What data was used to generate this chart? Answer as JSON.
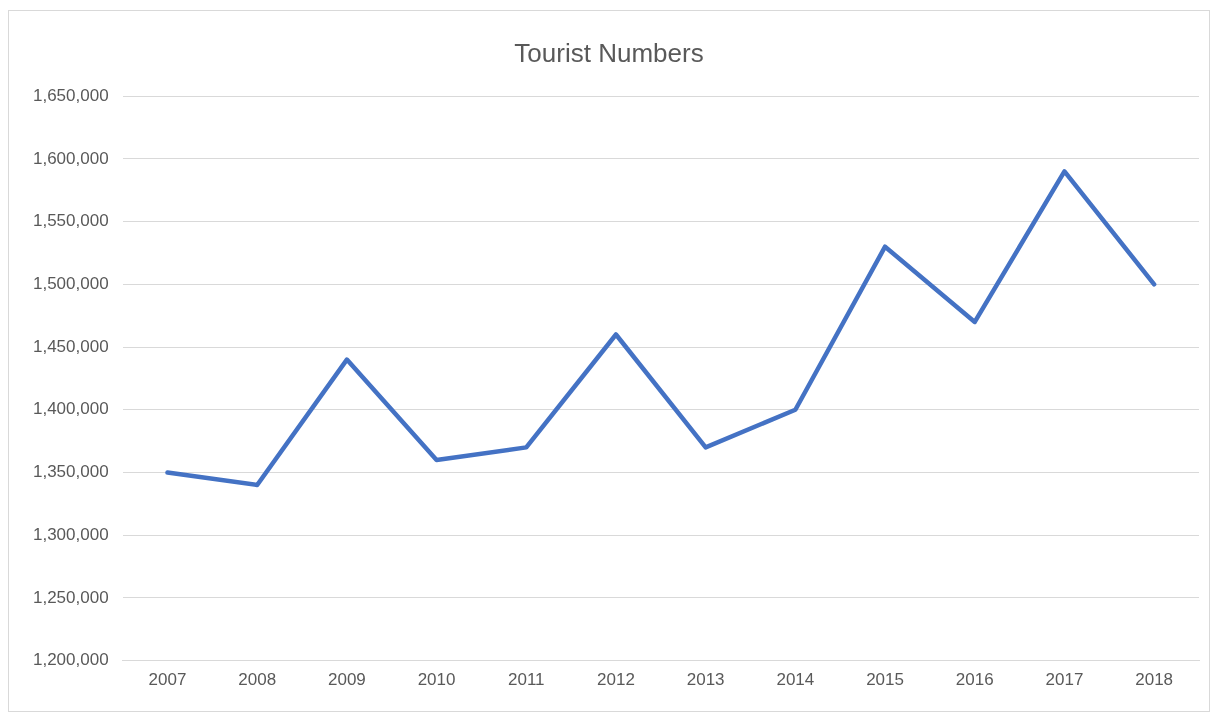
{
  "chart_data": {
    "type": "line",
    "title": "Tourist Numbers",
    "categories": [
      "2007",
      "2008",
      "2009",
      "2010",
      "2011",
      "2012",
      "2013",
      "2014",
      "2015",
      "2016",
      "2017",
      "2018"
    ],
    "series": [
      {
        "color": "#4472c4",
        "values": [
          1350000,
          1340000,
          1440000,
          1360000,
          1370000,
          1460000,
          1370000,
          1400000,
          1530000,
          1470000,
          1590000,
          1500000
        ]
      }
    ],
    "ylim": [
      1200000,
      1650000
    ],
    "yticks": [
      {
        "value": 1200000,
        "label": "1,200,000"
      },
      {
        "value": 1250000,
        "label": "1,250,000"
      },
      {
        "value": 1300000,
        "label": "1,300,000"
      },
      {
        "value": 1350000,
        "label": "1,350,000"
      },
      {
        "value": 1400000,
        "label": "1,400,000"
      },
      {
        "value": 1450000,
        "label": "1,450,000"
      },
      {
        "value": 1500000,
        "label": "1,500,000"
      },
      {
        "value": 1550000,
        "label": "1,550,000"
      },
      {
        "value": 1600000,
        "label": "1,600,000"
      },
      {
        "value": 1650000,
        "label": "1,650,000"
      }
    ],
    "grid": "y",
    "legend": false,
    "marker": "none",
    "line_style": "solid"
  }
}
